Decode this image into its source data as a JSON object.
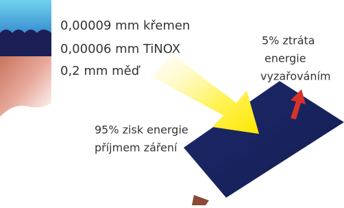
{
  "layers": [
    {
      "label": "0,00009 mm křemen"
    },
    {
      "label": "0,00006 mm TiNOX"
    },
    {
      "label": "0,2 mm měď"
    }
  ],
  "loss": {
    "lines": [
      "5% ztráta",
      "energie",
      "vyzařováním"
    ]
  },
  "gain": {
    "lines": [
      "95% zisk energie",
      "příjmem záření"
    ]
  }
}
